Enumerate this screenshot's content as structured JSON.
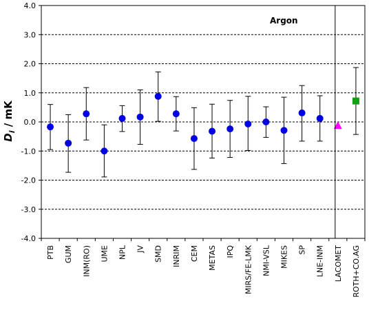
{
  "chart_data": {
    "type": "scatter",
    "title": "Argon",
    "ylabel_main": "D",
    "ylabel_sub": "i",
    "ylabel_unit": " / mK",
    "ylim": [
      -4.0,
      4.0
    ],
    "yticks": [
      "4.0",
      "3.0",
      "2.0",
      "1.0",
      "0.0",
      "-1.0",
      "-2.0",
      "-3.0",
      "-4.0"
    ],
    "ytick_values": [
      4,
      3,
      2,
      1,
      0,
      -1,
      -2,
      -3,
      -4
    ],
    "grid": "horizontal-dashed",
    "categories": [
      "PTB",
      "GUM",
      "INM(RO)",
      "UME",
      "NPL",
      "JV",
      "SMD",
      "INRIM",
      "CEM",
      "METAS",
      "IPQ",
      "MIRS/FE-LMK",
      "NMI-VSL",
      "MIKES",
      "SP",
      "LNE-INM",
      "LACOMET",
      "ROTH+CO.AG"
    ],
    "values": [
      -0.17,
      -0.73,
      0.28,
      -1.0,
      0.12,
      0.17,
      0.88,
      0.28,
      -0.57,
      -0.32,
      -0.24,
      -0.07,
      0.0,
      -0.29,
      0.31,
      0.12,
      -0.12,
      0.72
    ],
    "upper": [
      0.6,
      0.25,
      1.18,
      -0.1,
      0.56,
      1.1,
      1.72,
      0.87,
      0.49,
      0.61,
      0.74,
      0.88,
      0.52,
      0.85,
      1.25,
      0.9,
      null,
      1.87
    ],
    "lower": [
      -0.95,
      -1.73,
      -0.62,
      -1.89,
      -0.33,
      -0.77,
      0.02,
      -0.31,
      -1.63,
      -1.24,
      -1.22,
      -0.98,
      -0.53,
      -1.43,
      -0.66,
      -0.66,
      null,
      -0.43
    ],
    "markers": [
      "circle",
      "circle",
      "circle",
      "circle",
      "circle",
      "circle",
      "circle",
      "circle",
      "circle",
      "circle",
      "circle",
      "circle",
      "circle",
      "circle",
      "circle",
      "circle",
      "triangle",
      "square"
    ],
    "colors": [
      "#0000e6",
      "#0000e6",
      "#0000e6",
      "#0000e6",
      "#0000e6",
      "#0000e6",
      "#0000e6",
      "#0000e6",
      "#0000e6",
      "#0000e6",
      "#0000e6",
      "#0000e6",
      "#0000e6",
      "#0000e6",
      "#0000e6",
      "#0000e6",
      "#ff00ff",
      "#14a014"
    ],
    "separator_after_index": 16
  }
}
